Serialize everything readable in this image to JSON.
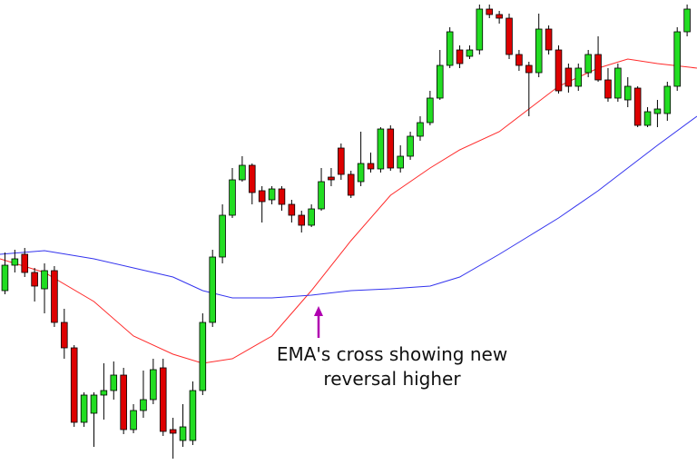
{
  "chart_data": {
    "type": "candlestick",
    "open": [
      192,
      220,
      232,
      212,
      194,
      214,
      157,
      129,
      47,
      57,
      77,
      82,
      99,
      39,
      60,
      72,
      107,
      39,
      27,
      27,
      82,
      157,
      229,
      275,
      314,
      330,
      302,
      292,
      304,
      287,
      275,
      264,
      282,
      317,
      349,
      320,
      312,
      332,
      326,
      370,
      327,
      340,
      362,
      377,
      404,
      440,
      457,
      450,
      457,
      502,
      496,
      492,
      452,
      440,
      432,
      480,
      457,
      437,
      417,
      432,
      452,
      424,
      404,
      402,
      415,
      374,
      387,
      387,
      417,
      477
    ],
    "high": [
      234,
      237,
      239,
      217,
      222,
      219,
      172,
      132,
      80,
      80,
      112,
      114,
      107,
      67,
      104,
      117,
      117,
      52,
      67,
      92,
      167,
      237,
      287,
      327,
      340,
      332,
      307,
      307,
      307,
      292,
      280,
      287,
      327,
      327,
      354,
      324,
      367,
      344,
      372,
      374,
      352,
      367,
      384,
      412,
      457,
      482,
      462,
      462,
      507,
      507,
      500,
      497,
      457,
      444,
      497,
      484,
      462,
      442,
      442,
      457,
      472,
      437,
      442,
      427,
      417,
      394,
      402,
      422,
      482,
      507
    ],
    "low": [
      188,
      212,
      207,
      180,
      167,
      152,
      117,
      42,
      42,
      20,
      50,
      72,
      34,
      35,
      52,
      67,
      32,
      7,
      20,
      22,
      77,
      152,
      222,
      272,
      312,
      287,
      267,
      287,
      280,
      267,
      256,
      262,
      280,
      307,
      314,
      294,
      307,
      322,
      322,
      324,
      322,
      336,
      357,
      374,
      402,
      437,
      437,
      447,
      452,
      492,
      486,
      447,
      434,
      384,
      427,
      452,
      409,
      410,
      412,
      427,
      422,
      400,
      400,
      394,
      372,
      372,
      372,
      379,
      412,
      472
    ],
    "close": [
      220,
      227,
      212,
      197,
      214,
      157,
      129,
      47,
      77,
      77,
      82,
      99,
      39,
      60,
      72,
      105,
      37,
      35,
      42,
      82,
      157,
      229,
      275,
      314,
      330,
      300,
      290,
      304,
      287,
      275,
      264,
      282,
      312,
      314,
      320,
      297,
      332,
      326,
      370,
      327,
      340,
      362,
      377,
      404,
      440,
      477,
      442,
      457,
      502,
      496,
      492,
      452,
      440,
      432,
      480,
      457,
      412,
      417,
      437,
      452,
      424,
      404,
      437,
      417,
      374,
      389,
      392,
      417,
      477,
      502
    ],
    "up_color": "#22dd22",
    "down_color": "#dd0000",
    "lines": [
      {
        "color": "#ff2a2a",
        "x": [
          -0.5,
          4,
          9,
          13,
          17,
          20,
          23,
          27,
          31,
          35,
          39,
          43,
          46,
          50,
          53,
          56,
          60,
          63,
          66,
          70
        ],
        "values": [
          227,
          212,
          180,
          142,
          122,
          112,
          117,
          142,
          192,
          247,
          297,
          327,
          347,
          367,
          392,
          417,
          437,
          447,
          442,
          437
        ]
      },
      {
        "color": "#3333ee",
        "x": [
          -0.5,
          4,
          9,
          13,
          17,
          20,
          23,
          27,
          31,
          35,
          39,
          43,
          46,
          50,
          53,
          56,
          60,
          63,
          66,
          70
        ],
        "values": [
          232,
          236,
          227,
          217,
          207,
          192,
          184,
          184,
          187,
          192,
          194,
          197,
          207,
          232,
          252,
          272,
          302,
          327,
          352,
          384
        ]
      }
    ],
    "xlim": [
      -0.5,
      70
    ],
    "ylim": [
      0,
      512
    ],
    "annotation": [
      "EMA's cross showing new",
      "reversal higher"
    ]
  }
}
